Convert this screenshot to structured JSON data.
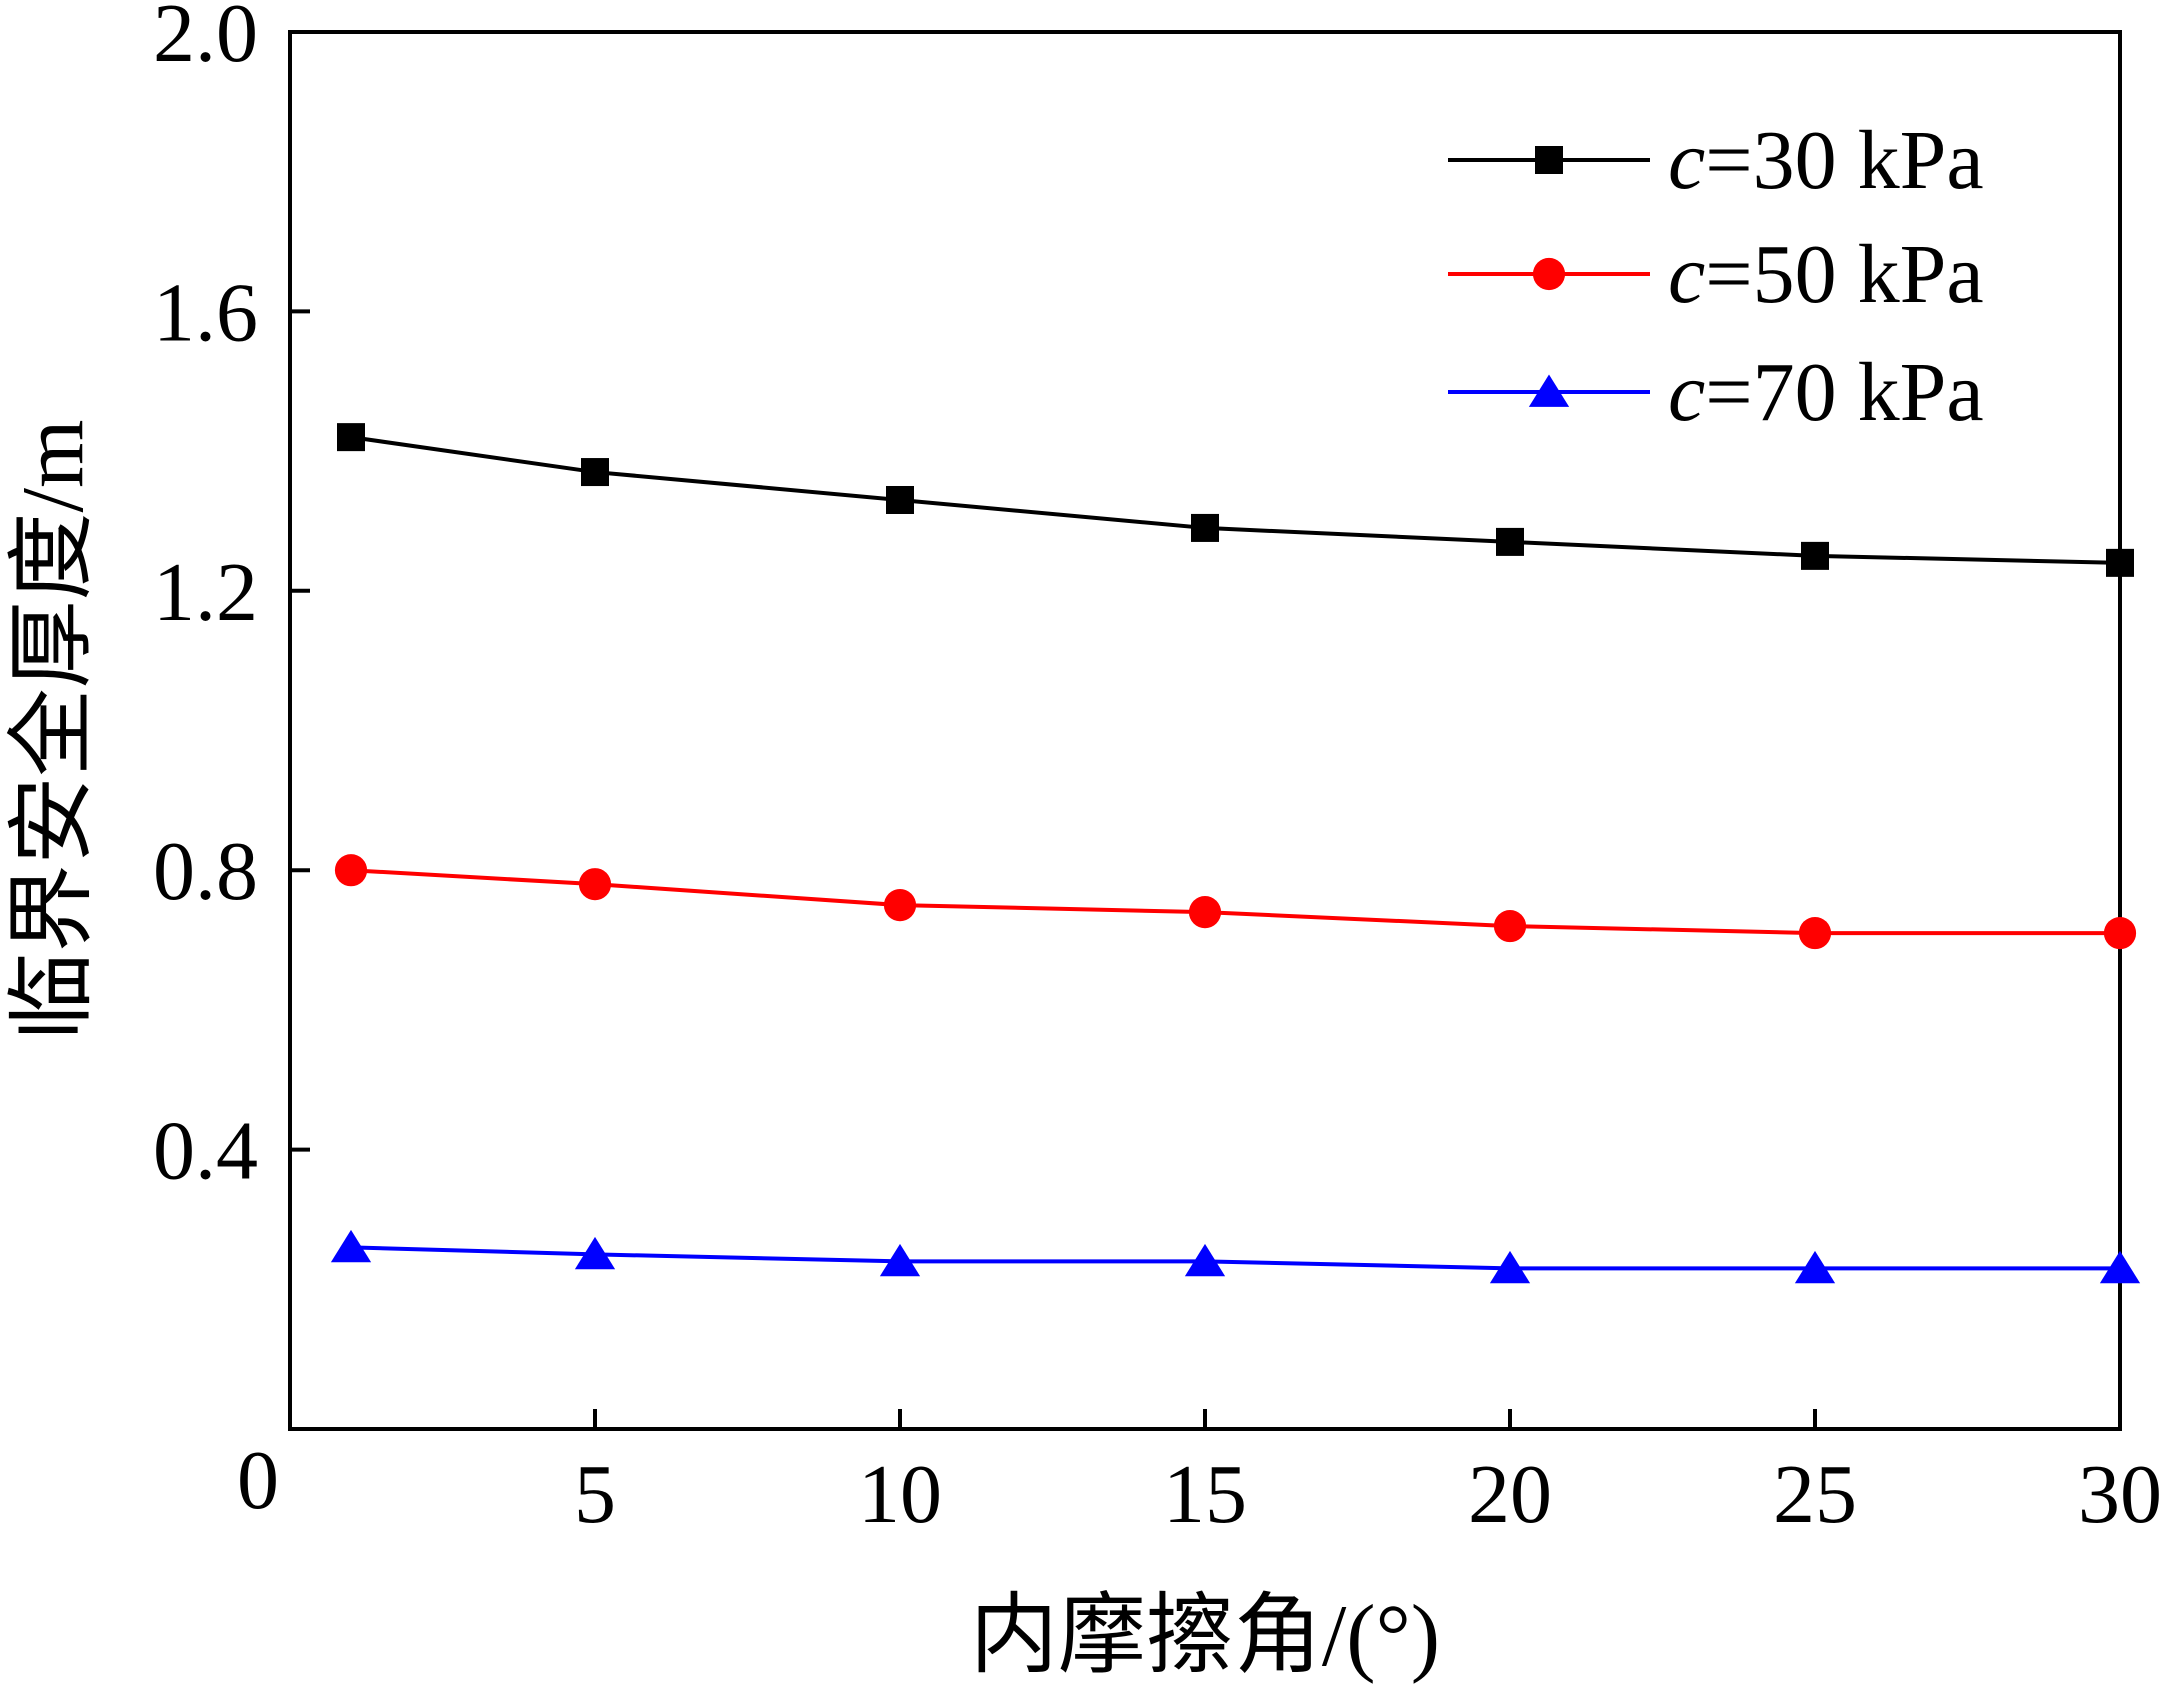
{
  "chart_data": {
    "type": "line",
    "xlabel": "内摩擦角/(°)",
    "ylabel": "临界安全厚度/m",
    "xlim": [
      0,
      30
    ],
    "ylim": [
      0,
      2.0
    ],
    "x_ticks": [
      5,
      10,
      15,
      20,
      25,
      30
    ],
    "x_tick_labels": [
      "5",
      "10",
      "15",
      "20",
      "25",
      "30"
    ],
    "y_ticks": [
      0,
      0.4,
      0.8,
      1.2,
      1.6,
      2.0
    ],
    "y_tick_labels": [
      "0",
      "0.4",
      "0.8",
      "1.2",
      "1.6",
      "2.0"
    ],
    "grid": false,
    "legend_position": "top-right",
    "x": [
      1,
      5,
      10,
      15,
      20,
      25,
      30
    ],
    "series": [
      {
        "name": "c=30 kPa",
        "name_italic": "c",
        "name_rest": "=30 kPa",
        "color": "#000000",
        "marker": "square",
        "values": [
          1.42,
          1.37,
          1.33,
          1.29,
          1.27,
          1.25,
          1.24
        ]
      },
      {
        "name": "c=50 kPa",
        "name_italic": "c",
        "name_rest": "=50 kPa",
        "color": "#ff0000",
        "marker": "circle",
        "values": [
          0.8,
          0.78,
          0.75,
          0.74,
          0.72,
          0.71,
          0.71
        ]
      },
      {
        "name": "c=70 kPa",
        "name_italic": "c",
        "name_rest": "=70 kPa",
        "color": "#0000ff",
        "marker": "triangle",
        "values": [
          0.26,
          0.25,
          0.24,
          0.24,
          0.23,
          0.23,
          0.23
        ]
      }
    ]
  }
}
